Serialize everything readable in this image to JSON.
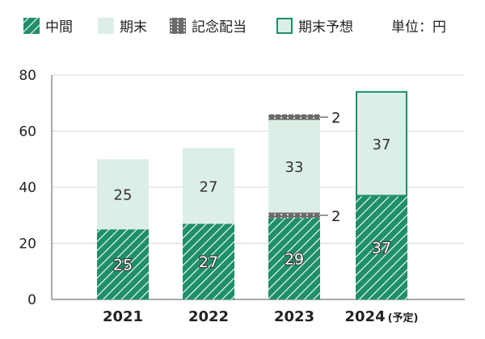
{
  "legend": {
    "interim": "中間",
    "year_end": "期末",
    "commemorative": "記念配当",
    "year_end_forecast": "期末予想",
    "unit": "単位：円"
  },
  "colors": {
    "green": "#1e8f6a",
    "light_green": "#dcefe6",
    "gray": "#6b6b6b",
    "axis": "#555555",
    "grid": "#d9d9d9"
  },
  "chart_data": {
    "type": "bar",
    "stacked": true,
    "categories": [
      "2021",
      "2022",
      "2023",
      "2024"
    ],
    "category_suffix": [
      "",
      "",
      "",
      "(予定)"
    ],
    "series": [
      {
        "name": "中間",
        "values": [
          25,
          27,
          29,
          37
        ]
      },
      {
        "name": "記念配当",
        "values": [
          0,
          0,
          2,
          0
        ]
      },
      {
        "name": "期末",
        "values": [
          25,
          27,
          33,
          0
        ]
      },
      {
        "name": "記念配当",
        "values": [
          0,
          0,
          2,
          0
        ]
      },
      {
        "name": "期末予想",
        "values": [
          0,
          0,
          0,
          37
        ]
      }
    ],
    "yticks": [
      0,
      20,
      40,
      60,
      80
    ],
    "ylim": [
      0,
      80
    ],
    "grid": true
  }
}
